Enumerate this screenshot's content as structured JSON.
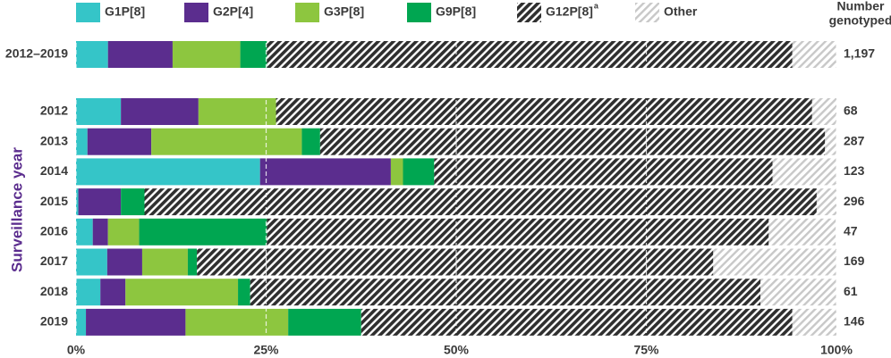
{
  "chart_data": {
    "type": "stacked-bar-horizontal",
    "y_label": "Surveillance year",
    "categories": [
      "2012–2019",
      "2012",
      "2013",
      "2014",
      "2015",
      "2016",
      "2017",
      "2018",
      "2019"
    ],
    "series": [
      {
        "name": "G1P[8]",
        "color": "#35c5c8",
        "values": [
          4.2,
          5.9,
          1.5,
          24.2,
          0.3,
          2.2,
          4.1,
          3.2,
          1.3
        ]
      },
      {
        "name": "G2P[4]",
        "color": "#5b2d8e",
        "values": [
          8.5,
          10.2,
          8.4,
          17.2,
          5.6,
          2.0,
          4.6,
          3.3,
          13.1
        ]
      },
      {
        "name": "G3P[8]",
        "color": "#8dc63f",
        "values": [
          8.9,
          10.2,
          19.8,
          1.6,
          0,
          4.1,
          6.0,
          14.8,
          13.5
        ]
      },
      {
        "name": "G9P[8]",
        "color": "#00a651",
        "values": [
          3.5,
          0,
          2.4,
          4.1,
          3.1,
          16.8,
          1.2,
          1.6,
          9.6
        ]
      },
      {
        "name": "G12P[8]",
        "marker": "a",
        "color": "#2f2f2f",
        "hatch": true,
        "values": [
          69.1,
          70.5,
          66.4,
          44.5,
          88.4,
          66.0,
          67.9,
          67.1,
          56.7
        ]
      },
      {
        "name": "Other",
        "color": "#c8c8c8",
        "hatch": true,
        "values": [
          5.8,
          3.2,
          1.5,
          8.4,
          2.6,
          8.8,
          16.2,
          10.0,
          5.8
        ]
      }
    ],
    "n_header": [
      "Number",
      "genotyped"
    ],
    "n": [
      {
        "value": 1197,
        "label": "1,197"
      },
      68,
      287,
      123,
      296,
      47,
      169,
      61,
      146
    ],
    "xlim": [
      0,
      100
    ],
    "xticks": [
      {
        "value": 0,
        "label": "0%"
      },
      {
        "value": 25,
        "label": "25%"
      },
      {
        "value": 50,
        "label": "50%"
      },
      {
        "value": 75,
        "label": "75%"
      },
      {
        "value": 100,
        "label": "100%"
      }
    ],
    "grid": true
  }
}
